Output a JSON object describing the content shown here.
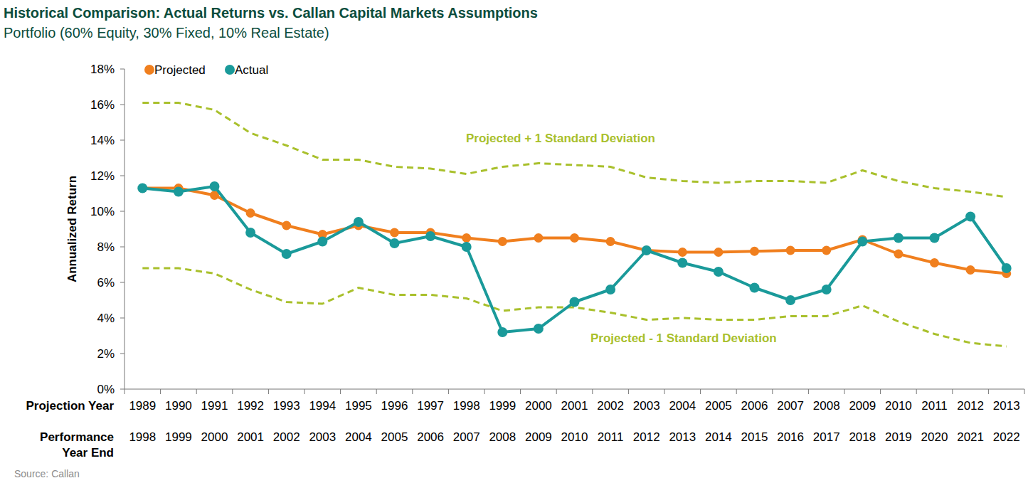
{
  "chart_data": {
    "type": "line",
    "title": "Historical Comparison: Actual Returns vs. Callan Capital Markets Assumptions",
    "subtitle": "Portfolio (60% Equity, 30% Fixed, 10% Real Estate)",
    "y_label": "Annualized Return",
    "category_titles": [
      "Projection Year",
      "Performance Year End"
    ],
    "categories": [
      "1989",
      "1990",
      "1991",
      "1992",
      "1993",
      "1994",
      "1995",
      "1996",
      "1997",
      "1998",
      "1999",
      "2000",
      "2001",
      "2002",
      "2003",
      "2004",
      "2005",
      "2006",
      "2007",
      "2008",
      "2009",
      "2010",
      "2011",
      "2012",
      "2013"
    ],
    "performance_years": [
      "1998",
      "1999",
      "2000",
      "2001",
      "2002",
      "2003",
      "2004",
      "2005",
      "2006",
      "2007",
      "2008",
      "2009",
      "2010",
      "2011",
      "2012",
      "2013",
      "2014",
      "2015",
      "2016",
      "2017",
      "2018",
      "2019",
      "2020",
      "2021",
      "2022"
    ],
    "ylim": [
      0,
      18
    ],
    "yticks": [
      {
        "value": 0,
        "label": "0%"
      },
      {
        "value": 2,
        "label": "2%"
      },
      {
        "value": 4,
        "label": "4%"
      },
      {
        "value": 6,
        "label": "6%"
      },
      {
        "value": 8,
        "label": "8%"
      },
      {
        "value": 10,
        "label": "10%"
      },
      {
        "value": 12,
        "label": "12%"
      },
      {
        "value": 14,
        "label": "14%"
      },
      {
        "value": 16,
        "label": "16%"
      },
      {
        "value": 18,
        "label": "18%"
      }
    ],
    "grid": false,
    "legend": "top-left",
    "source": "Source: Callan",
    "series": [
      {
        "name": "Projected + 1 Standard Deviation",
        "color": "#a9c02c",
        "marker": "none",
        "line_style": "dashed",
        "values": [
          16.1,
          16.1,
          15.7,
          14.4,
          13.7,
          12.9,
          12.9,
          12.5,
          12.4,
          12.1,
          12.5,
          12.7,
          12.6,
          12.5,
          11.9,
          11.7,
          11.6,
          11.7,
          11.7,
          11.6,
          12.3,
          11.7,
          11.3,
          11.1,
          10.8
        ]
      },
      {
        "name": "Projected - 1 Standard Deviation",
        "color": "#a9c02c",
        "marker": "none",
        "line_style": "dashed",
        "values": [
          6.8,
          6.8,
          6.5,
          5.6,
          4.9,
          4.8,
          5.7,
          5.3,
          5.3,
          5.1,
          4.4,
          4.6,
          4.6,
          4.3,
          3.9,
          4.0,
          3.9,
          3.9,
          4.1,
          4.1,
          4.7,
          3.8,
          3.1,
          2.6,
          2.4
        ]
      },
      {
        "name": "Projected",
        "color": "#f07f1e",
        "marker": "circle",
        "line_style": "solid",
        "values": [
          11.3,
          11.3,
          10.9,
          9.9,
          9.2,
          8.7,
          9.2,
          8.8,
          8.8,
          8.5,
          8.3,
          8.5,
          8.5,
          8.3,
          7.8,
          7.7,
          7.7,
          7.75,
          7.8,
          7.8,
          8.4,
          7.6,
          7.1,
          6.7,
          6.5
        ]
      },
      {
        "name": "Actual",
        "color": "#1a9a9a",
        "marker": "circle",
        "line_style": "solid",
        "values": [
          11.3,
          11.1,
          11.4,
          8.8,
          7.6,
          8.3,
          9.4,
          8.2,
          8.6,
          8.0,
          3.2,
          3.4,
          4.9,
          5.6,
          7.8,
          7.1,
          6.6,
          5.7,
          5.0,
          5.6,
          8.3,
          8.5,
          8.5,
          9.7,
          6.8
        ]
      }
    ]
  }
}
